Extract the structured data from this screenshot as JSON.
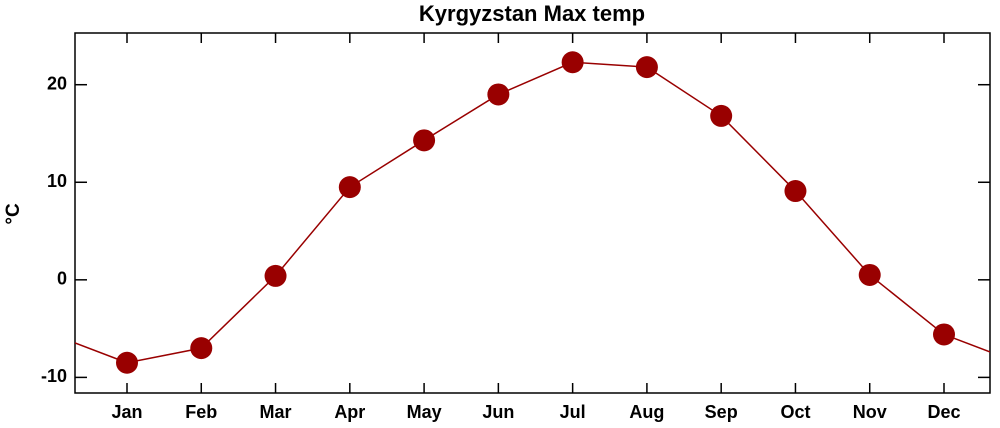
{
  "chart_data": {
    "type": "line",
    "title": "Kyrgyzstan Max temp",
    "y_label": "°C",
    "categories": [
      "Jan",
      "Feb",
      "Mar",
      "Apr",
      "May",
      "Jun",
      "Jul",
      "Aug",
      "Sep",
      "Oct",
      "Nov",
      "Dec"
    ],
    "values": [
      -8.5,
      -7.0,
      0.4,
      9.5,
      14.3,
      19.0,
      22.3,
      21.8,
      16.8,
      9.1,
      0.5,
      -5.6
    ],
    "color": "#990000",
    "ylim": [
      -11.6,
      25.3
    ],
    "yticks": [
      -10,
      0,
      10,
      20
    ]
  }
}
